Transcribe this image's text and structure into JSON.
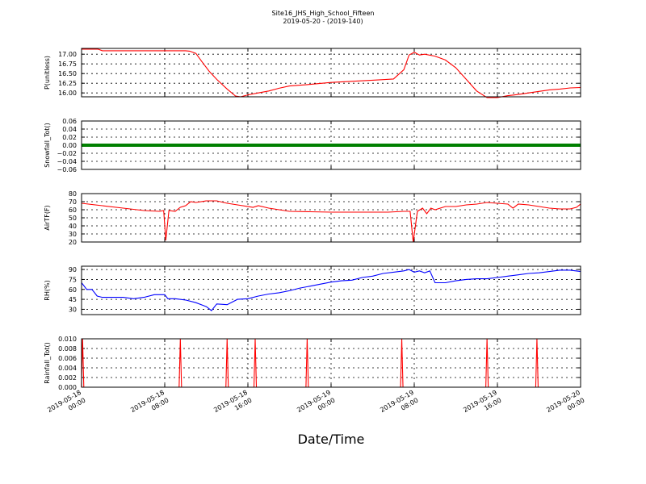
{
  "chart_data": {
    "type": "line",
    "title": "Site16_JHS_High_School_Fifteen",
    "subtitle": "2019-05-20 - (2019-140)",
    "xlabel": "Date/Time",
    "x_ticks": [
      [
        "2019-05-18",
        "00:00"
      ],
      [
        "2019-05-18",
        "08:00"
      ],
      [
        "2019-05-18",
        "16:00"
      ],
      [
        "2019-05-19",
        "00:00"
      ],
      [
        "2019-05-19",
        "08:00"
      ],
      [
        "2019-05-19",
        "16:00"
      ],
      [
        "2019-05-20",
        "00:00"
      ]
    ],
    "grid": true,
    "panels": [
      {
        "ylabel": "P(unitless)",
        "color": "#ff0000",
        "ylim": [
          15.9,
          17.15
        ],
        "yticks": [
          "17.00",
          "16.75",
          "16.50",
          "16.25",
          "16.00"
        ],
        "ytick_values": [
          17.0,
          16.75,
          16.5,
          16.25,
          16.0
        ],
        "points": [
          [
            0,
            17.13
          ],
          [
            1.6,
            17.13
          ],
          [
            2,
            17.09
          ],
          [
            4,
            17.09
          ],
          [
            6,
            17.09
          ],
          [
            8,
            17.09
          ],
          [
            10,
            17.09
          ],
          [
            10.4,
            17.08
          ],
          [
            11,
            17.02
          ],
          [
            11.6,
            16.8
          ],
          [
            12.3,
            16.55
          ],
          [
            13,
            16.35
          ],
          [
            14,
            16.1
          ],
          [
            14.8,
            15.92
          ],
          [
            15.3,
            15.9
          ],
          [
            16,
            15.95
          ],
          [
            17,
            16.0
          ],
          [
            18,
            16.05
          ],
          [
            19,
            16.12
          ],
          [
            20,
            16.18
          ],
          [
            22,
            16.22
          ],
          [
            24,
            16.27
          ],
          [
            26,
            16.3
          ],
          [
            28,
            16.33
          ],
          [
            30,
            16.36
          ],
          [
            31,
            16.6
          ],
          [
            31.5,
            16.98
          ],
          [
            32,
            17.05
          ],
          [
            32.5,
            16.98
          ],
          [
            33,
            17.0
          ],
          [
            34,
            16.95
          ],
          [
            35,
            16.85
          ],
          [
            36,
            16.65
          ],
          [
            37,
            16.35
          ],
          [
            38,
            16.05
          ],
          [
            39,
            15.88
          ],
          [
            40,
            15.88
          ],
          [
            41,
            15.93
          ],
          [
            42,
            15.96
          ],
          [
            43,
            16.0
          ],
          [
            44,
            16.04
          ],
          [
            45,
            16.08
          ],
          [
            46,
            16.1
          ],
          [
            47,
            16.13
          ],
          [
            48,
            16.14
          ]
        ]
      },
      {
        "ylabel": "Snowfall_Tot()",
        "color": "#008000",
        "ylim": [
          -0.06,
          0.06
        ],
        "yticks": [
          "0.06",
          "0.04",
          "0.02",
          "0.00",
          "−0.02",
          "−0.04",
          "−0.06"
        ],
        "ytick_values": [
          0.06,
          0.04,
          0.02,
          0.0,
          -0.02,
          -0.04,
          -0.06
        ],
        "points": [
          [
            0,
            0
          ],
          [
            48,
            0
          ]
        ],
        "thick": true
      },
      {
        "ylabel": "AirTF(F)",
        "color": "#ff0000",
        "ylim": [
          20,
          80
        ],
        "yticks": [
          "80",
          "70",
          "60",
          "50",
          "40",
          "30",
          "20"
        ],
        "ytick_values": [
          80,
          70,
          60,
          50,
          40,
          30,
          20
        ],
        "points": [
          [
            0,
            68
          ],
          [
            2,
            65
          ],
          [
            4,
            62
          ],
          [
            6,
            59
          ],
          [
            7.5,
            58
          ],
          [
            7.9,
            59
          ],
          [
            8.1,
            22
          ],
          [
            8.4,
            59
          ],
          [
            9,
            58
          ],
          [
            9.5,
            63
          ],
          [
            10,
            65
          ],
          [
            10.5,
            70
          ],
          [
            11,
            69
          ],
          [
            12,
            71
          ],
          [
            13,
            71
          ],
          [
            14,
            68
          ],
          [
            15,
            66
          ],
          [
            16.5,
            63
          ],
          [
            17,
            65
          ],
          [
            18,
            62
          ],
          [
            20,
            58
          ],
          [
            22,
            57.5
          ],
          [
            24,
            57
          ],
          [
            26,
            57
          ],
          [
            28,
            57
          ],
          [
            29.5,
            57
          ],
          [
            31,
            58
          ],
          [
            31.6,
            58
          ],
          [
            31.9,
            20
          ],
          [
            32.3,
            58
          ],
          [
            32.8,
            62
          ],
          [
            33.2,
            55
          ],
          [
            33.6,
            62
          ],
          [
            34,
            60
          ],
          [
            35,
            64
          ],
          [
            36,
            64
          ],
          [
            37,
            66
          ],
          [
            38,
            67
          ],
          [
            39,
            69
          ],
          [
            40,
            68
          ],
          [
            41,
            67
          ],
          [
            41.5,
            62
          ],
          [
            42,
            67
          ],
          [
            43,
            66
          ],
          [
            44,
            64
          ],
          [
            45,
            62
          ],
          [
            46,
            61
          ],
          [
            47,
            61
          ],
          [
            47.6,
            63
          ],
          [
            48,
            67
          ]
        ]
      },
      {
        "ylabel": "RH(%)",
        "color": "#0000ff",
        "ylim": [
          22,
          95
        ],
        "yticks": [
          "90",
          "75",
          "60",
          "45",
          "30"
        ],
        "ytick_values": [
          90,
          75,
          60,
          45,
          30
        ],
        "points": [
          [
            0,
            70
          ],
          [
            0.5,
            60
          ],
          [
            1,
            60
          ],
          [
            1.5,
            50
          ],
          [
            2,
            48
          ],
          [
            3,
            48
          ],
          [
            4,
            48
          ],
          [
            5,
            46
          ],
          [
            6,
            48
          ],
          [
            7,
            52
          ],
          [
            8,
            52
          ],
          [
            8.3,
            46
          ],
          [
            9,
            46
          ],
          [
            10,
            44
          ],
          [
            11,
            40
          ],
          [
            12,
            34
          ],
          [
            12.5,
            28
          ],
          [
            13,
            38
          ],
          [
            14,
            37
          ],
          [
            15,
            45
          ],
          [
            16,
            46
          ],
          [
            17,
            50
          ],
          [
            18,
            53
          ],
          [
            19,
            55
          ],
          [
            20,
            58
          ],
          [
            21,
            62
          ],
          [
            22,
            65
          ],
          [
            23,
            68
          ],
          [
            24,
            71
          ],
          [
            25,
            73
          ],
          [
            26,
            74
          ],
          [
            27,
            78
          ],
          [
            28,
            80
          ],
          [
            29,
            84
          ],
          [
            30,
            86
          ],
          [
            31,
            88
          ],
          [
            31.5,
            90
          ],
          [
            32,
            86
          ],
          [
            32.5,
            88
          ],
          [
            33,
            85
          ],
          [
            33.5,
            88
          ],
          [
            34,
            70
          ],
          [
            35,
            70
          ],
          [
            36,
            73
          ],
          [
            37,
            75
          ],
          [
            38,
            76
          ],
          [
            39,
            76
          ],
          [
            40,
            78
          ],
          [
            41,
            80
          ],
          [
            42,
            82
          ],
          [
            43,
            84
          ],
          [
            44,
            85
          ],
          [
            45,
            87
          ],
          [
            46,
            89
          ],
          [
            47,
            89
          ],
          [
            48,
            87
          ]
        ]
      },
      {
        "ylabel": "Rainfall_Tot()",
        "color": "#ff0000",
        "ylim": [
          0,
          0.01
        ],
        "yticks": [
          "0.010",
          "0.008",
          "0.006",
          "0.004",
          "0.002",
          "0.000"
        ],
        "ytick_values": [
          0.01,
          0.008,
          0.006,
          0.004,
          0.002,
          0.0
        ],
        "spikes": [
          0.1,
          9.5,
          14,
          16.7,
          21.7,
          30.8,
          39,
          43.8
        ],
        "spike_value": 0.01
      }
    ]
  }
}
